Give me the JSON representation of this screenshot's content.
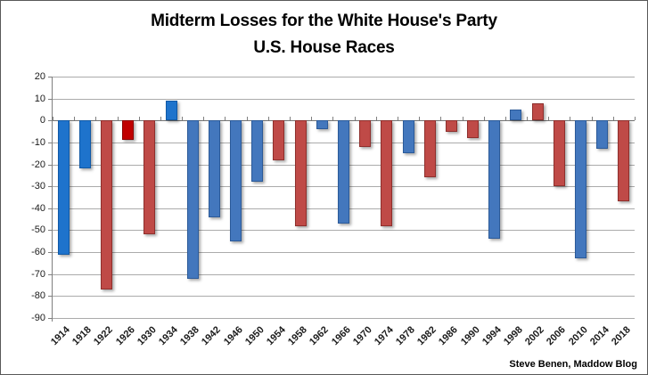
{
  "title": {
    "line1": "Midterm Losses for the White House's Party",
    "line2": "U.S. House Races"
  },
  "attribution": "Steve Benen, Maddow Blog",
  "chart_data": {
    "type": "bar",
    "title": "Midterm Losses for the White House's Party",
    "subtitle": "U.S. House Races",
    "annotation": "Steve Benen, Maddow Blog",
    "categories": [
      "1914",
      "1918",
      "1922",
      "1926",
      "1930",
      "1934",
      "1938",
      "1942",
      "1946",
      "1950",
      "1954",
      "1958",
      "1962",
      "1966",
      "1970",
      "1974",
      "1978",
      "1982",
      "1986",
      "1990",
      "1994",
      "1998",
      "2002",
      "2006",
      "2010",
      "2014",
      "2018"
    ],
    "values": [
      -61,
      -22,
      -77,
      -9,
      -52,
      9,
      -72,
      -44,
      -55,
      -28,
      -18,
      -48,
      -4,
      -47,
      -12,
      -48,
      -15,
      -26,
      -5,
      -8,
      -54,
      5,
      8,
      -30,
      -63,
      -13,
      -37
    ],
    "bar_color_keys": [
      "blue_bright",
      "blue_bright",
      "red",
      "red_bright",
      "red",
      "blue_bright",
      "blue",
      "blue",
      "blue",
      "blue",
      "red",
      "red",
      "blue",
      "blue",
      "red",
      "red",
      "blue",
      "red",
      "red",
      "red",
      "blue",
      "blue",
      "red",
      "red",
      "blue",
      "blue",
      "red"
    ],
    "ylim": [
      -90,
      20
    ],
    "yticks": [
      20,
      10,
      0,
      -10,
      -20,
      -30,
      -40,
      -50,
      -60,
      -70,
      -80,
      -90
    ],
    "grid": true,
    "legend": "none",
    "palette": {
      "blue_bright": {
        "fill": "#1E73CC",
        "border": "#1059A6"
      },
      "blue": {
        "fill": "#4377BD",
        "border": "#2B5A99"
      },
      "red": {
        "fill": "#BF4A47",
        "border": "#8E2F2C"
      },
      "red_bright": {
        "fill": "#C00000",
        "border": "#8C0000"
      },
      "gridline": "#ABABAB",
      "zero_line": "#737373",
      "axis": "#7F7F7F",
      "label_color": "#1A1A1A"
    }
  }
}
